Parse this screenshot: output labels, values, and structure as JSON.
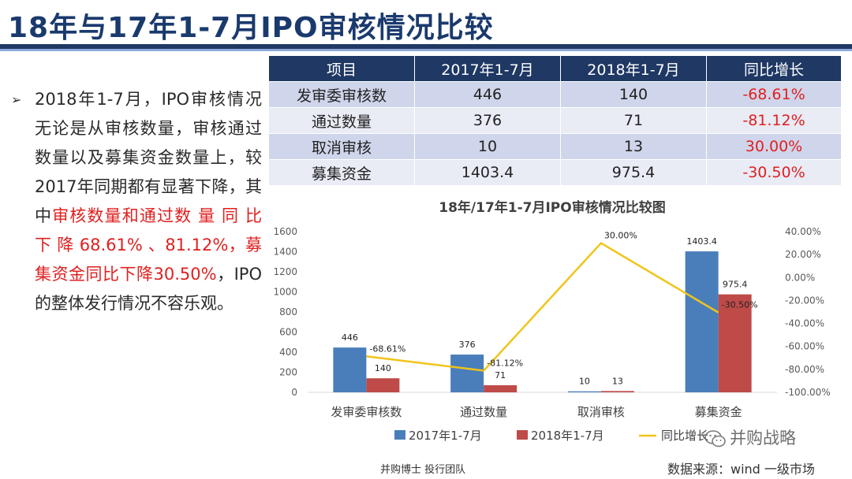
{
  "title": "18年与17年1-7月IPO审核情况比较",
  "bullet": {
    "part1": "2018年1-7月，IPO审核情况无论是从审核数量，审核通过数量以及募集资金数量上，较2017年同期都有显著下降，其中",
    "highlight": "审核数量和通过数 量 同 比 下 降 68.61% 、81.12%，募集资金同比下降30.50%",
    "part2": "，IPO的整体发行情况不容乐观。"
  },
  "table": {
    "headers": [
      "项目",
      "2017年1-7月",
      "2018年1-7月",
      "同比增长"
    ],
    "rows": [
      [
        "发审委审核数",
        "446",
        "140",
        "-68.61%"
      ],
      [
        "通过数量",
        "376",
        "71",
        "-81.12%"
      ],
      [
        "取消审核",
        "10",
        "13",
        "30.00%"
      ],
      [
        "募集资金",
        "1403.4",
        "975.4",
        "-30.50%"
      ]
    ]
  },
  "chart_data": {
    "type": "bar",
    "title": "18年/17年1-7月IPO审核情况比较图",
    "categories": [
      "发审委审核数",
      "通过数量",
      "取消审核",
      "募集资金"
    ],
    "series": [
      {
        "name": "2017年1-7月",
        "type": "bar",
        "axis": "left",
        "values": [
          446,
          376,
          10,
          1403.4
        ],
        "labels": [
          "446",
          "376",
          "10",
          "1403.4"
        ],
        "color": "#4a7ebb"
      },
      {
        "name": "2018年1-7月",
        "type": "bar",
        "axis": "left",
        "values": [
          140,
          71,
          13,
          975.4
        ],
        "labels": [
          "140",
          "71",
          "13",
          "975.4"
        ],
        "color": "#be4b48"
      },
      {
        "name": "同比增长",
        "type": "line",
        "axis": "right",
        "values": [
          -68.61,
          -81.12,
          30.0,
          -30.5
        ],
        "labels": [
          "-68.61%",
          "-81.12%",
          "30.00%",
          "-30.50%"
        ],
        "color": "#f0c419"
      }
    ],
    "ylim_left": [
      0,
      1600
    ],
    "yticks_left": [
      "0",
      "200",
      "400",
      "600",
      "800",
      "1000",
      "1200",
      "1400",
      "1600"
    ],
    "ylim_right": [
      -100,
      40
    ],
    "yticks_right": [
      "-100.00%",
      "-80.00%",
      "-60.00%",
      "-40.00%",
      "-20.00%",
      "0.00%",
      "20.00%",
      "40.00%"
    ],
    "grid": false,
    "legend": "bottom",
    "legend_labels": [
      "2017年1-7月",
      "2018年1-7月",
      "同比增长"
    ]
  },
  "footer_left": "并购博士 投行团队",
  "footer_right": "数据来源：wind 一级市场",
  "watermark": "并购战略"
}
